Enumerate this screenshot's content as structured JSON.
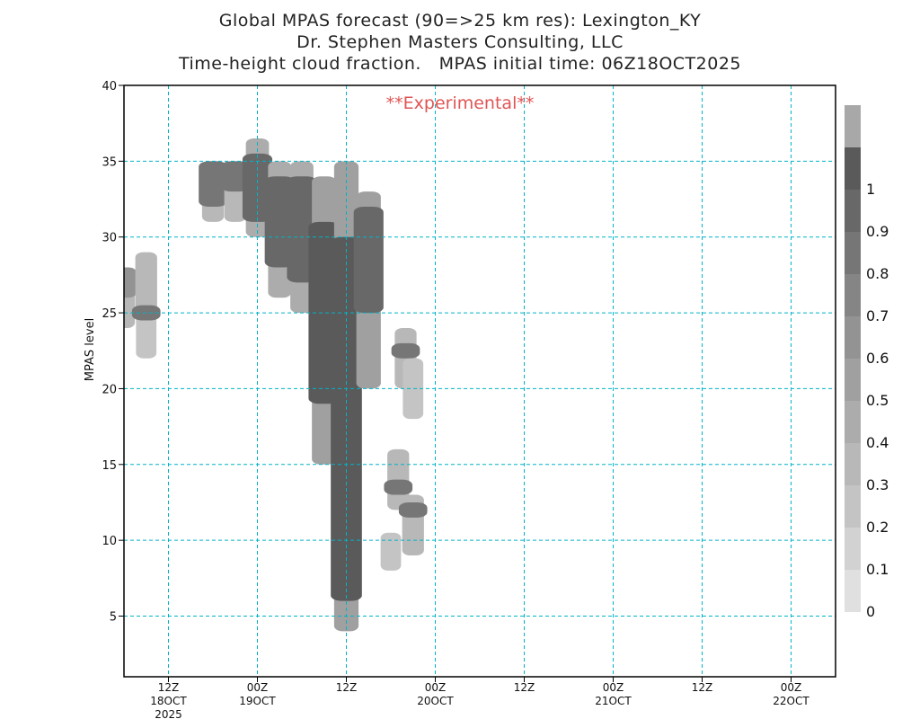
{
  "title_lines": [
    "Global MPAS forecast (90=>25 km res): Lexington_KY",
    "Dr. Stephen Masters Consulting, LLC",
    "Time-height cloud fraction.   MPAS initial time: 06Z18OCT2025"
  ],
  "watermark": "**Experimental**",
  "colors": {
    "grid": "#00b4c8",
    "watermark": "#e05555",
    "frame": "#000000"
  },
  "chart_data": {
    "type": "heatmap",
    "xlabel": "",
    "ylabel": "MPAS level",
    "x_units": "hours since 06Z18OCT2025",
    "xlim": [
      0,
      96
    ],
    "ylim": [
      1,
      40
    ],
    "y_ticks": [
      5,
      10,
      15,
      20,
      25,
      30,
      35,
      40
    ],
    "x_ticks": [
      {
        "t": 6,
        "label": "12Z",
        "sub1": "18OCT",
        "sub2": "2025"
      },
      {
        "t": 18,
        "label": "00Z",
        "sub1": "19OCT",
        "sub2": ""
      },
      {
        "t": 30,
        "label": "12Z",
        "sub1": "",
        "sub2": ""
      },
      {
        "t": 42,
        "label": "00Z",
        "sub1": "20OCT",
        "sub2": ""
      },
      {
        "t": 54,
        "label": "12Z",
        "sub1": "",
        "sub2": ""
      },
      {
        "t": 66,
        "label": "00Z",
        "sub1": "21OCT",
        "sub2": ""
      },
      {
        "t": 78,
        "label": "12Z",
        "sub1": "",
        "sub2": ""
      },
      {
        "t": 90,
        "label": "00Z",
        "sub1": "22OCT",
        "sub2": ""
      }
    ],
    "grid": true,
    "colorbar": {
      "labels": [
        "0",
        "0.1",
        "0.2",
        "0.3",
        "0.4",
        "0.5",
        "0.6",
        "0.7",
        "0.8",
        "0.9",
        "1"
      ],
      "colors": [
        "#e0e0e0",
        "#d2d2d2",
        "#c4c4c4",
        "#b8b8b8",
        "#acacac",
        "#a0a0a0",
        "#939393",
        "#858585",
        "#767676",
        "#686868",
        "#5a5a5a",
        "#a8a8a8"
      ]
    },
    "cloud_fraction": [
      {
        "t": 0,
        "levels": [
          [
            24,
            28,
            0.3
          ],
          [
            26,
            28,
            0.6
          ]
        ]
      },
      {
        "t": 3,
        "levels": [
          [
            22,
            25,
            0.2
          ],
          [
            25,
            29,
            0.3
          ],
          [
            24.5,
            25.5,
            0.8
          ]
        ]
      },
      {
        "t": 12,
        "levels": [
          [
            31,
            35,
            0.3
          ],
          [
            32,
            35,
            0.8
          ]
        ]
      },
      {
        "t": 15,
        "levels": [
          [
            31,
            35,
            0.3
          ],
          [
            33,
            35,
            0.8
          ]
        ]
      },
      {
        "t": 18,
        "levels": [
          [
            30,
            36.5,
            0.4
          ],
          [
            31,
            35.5,
            0.9
          ]
        ]
      },
      {
        "t": 21,
        "levels": [
          [
            26,
            35,
            0.4
          ],
          [
            28,
            34,
            0.9
          ]
        ]
      },
      {
        "t": 24,
        "levels": [
          [
            25,
            35,
            0.4
          ],
          [
            27,
            34,
            0.9
          ]
        ]
      },
      {
        "t": 27,
        "levels": [
          [
            15,
            34,
            0.5
          ],
          [
            19,
            31,
            1.0
          ]
        ]
      },
      {
        "t": 30,
        "levels": [
          [
            4,
            35,
            0.5
          ],
          [
            6,
            30,
            1.0
          ]
        ]
      },
      {
        "t": 33,
        "levels": [
          [
            20,
            33,
            0.5
          ],
          [
            25,
            32,
            0.9
          ]
        ]
      },
      {
        "t": 36,
        "levels": [
          [
            8,
            10.5,
            0.2
          ]
        ]
      },
      {
        "t": 37,
        "levels": [
          [
            12,
            16,
            0.3
          ],
          [
            13,
            14,
            0.8
          ]
        ]
      },
      {
        "t": 38,
        "levels": [
          [
            20,
            24,
            0.3
          ],
          [
            22,
            23,
            0.8
          ]
        ]
      },
      {
        "t": 39,
        "levels": [
          [
            9,
            13,
            0.3
          ],
          [
            11.5,
            12.5,
            0.8
          ],
          [
            18,
            22,
            0.2
          ]
        ]
      }
    ]
  }
}
